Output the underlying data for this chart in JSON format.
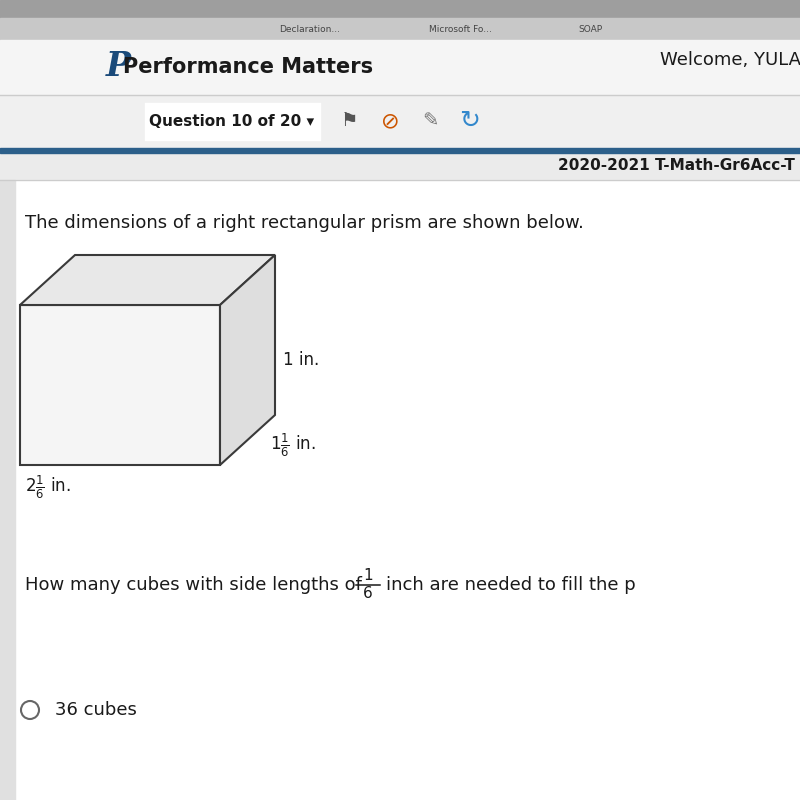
{
  "bg_color": "#e8e8e8",
  "header_bg": "#f5f5f5",
  "content_bg": "#f0f0f0",
  "white_bg": "#ffffff",
  "header_text": "Performance Matters",
  "welcome_text": "Welcome, YULA",
  "question_label": "Question 10 of 20",
  "test_id_text": "2020-2021 T-Math-Gr6Acc-T",
  "problem_text": "The dimensions of a right rectangular prism are shown below.",
  "q2_pre": "How many cubes with side lengths of",
  "q2_post": "inch are needed to fill the p",
  "answer_text": "36 cubes",
  "dim_h": "1 in.",
  "top_strip_color": "#9e9e9e",
  "tab_strip_color": "#c8c8c8",
  "divider_dark": "#2c5f8a",
  "divider_light": "#cccccc",
  "edge_color": "#3a3a3a",
  "face_front": "#f5f5f5",
  "face_top": "#e8e8e8",
  "face_right": "#dedede",
  "font_dark": "#1a1a1a",
  "font_medium": "#333333",
  "radio_color": "#666666",
  "tab_text_color": "#444444"
}
